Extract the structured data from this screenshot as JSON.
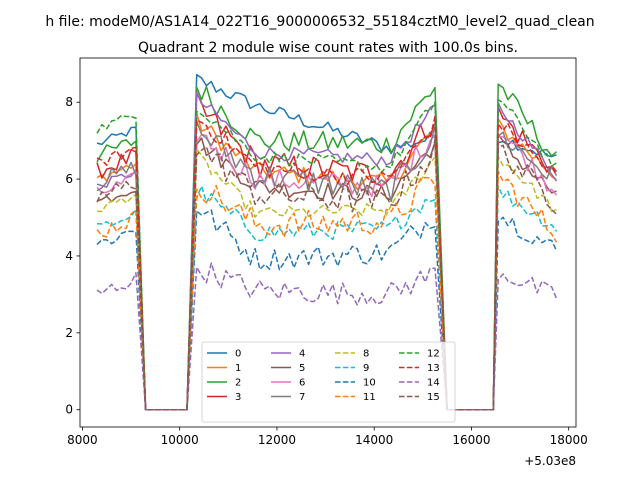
{
  "suptitle": "h file: modeM0/AS1A14_022T16_9000006532_55184cztM0_level2_quad_clean",
  "chart_data": {
    "type": "line",
    "title": "Quadrant 2 module wise count rates with 100.0s bins.",
    "xlabel": "",
    "ylabel": "",
    "offset_label": "+5.03e8",
    "xlim": [
      7950,
      18150
    ],
    "ylim": [
      -0.45,
      9.15
    ],
    "x_ticks": [
      8000,
      10000,
      12000,
      14000,
      16000,
      18000
    ],
    "x_tick_labels": [
      "8000",
      "10000",
      "12000",
      "14000",
      "16000",
      "18000"
    ],
    "y_ticks": [
      0,
      2,
      4,
      6,
      8
    ],
    "y_tick_labels": [
      "0",
      "2",
      "4",
      "6",
      "8"
    ],
    "grid": false,
    "legend": {
      "placement": "lower-center",
      "ncol": 4
    },
    "segments": [
      {
        "start": 8300,
        "end": 9100
      },
      {
        "start": 10350,
        "end": 15300
      },
      {
        "start": 16550,
        "end": 17800
      }
    ],
    "gaps": [
      {
        "start": 9300,
        "end": 10150
      },
      {
        "start": 15500,
        "end": 16450
      }
    ],
    "series": [
      {
        "name": "0",
        "color": "#1f77b4",
        "dash": "solid",
        "values": [
          6.9,
          8.6,
          7.9,
          6.8,
          7.1,
          6.5
        ]
      },
      {
        "name": "1",
        "color": "#ff7f0e",
        "dash": "solid",
        "values": [
          6.0,
          7.5,
          6.2,
          5.9,
          7.4,
          6.0
        ]
      },
      {
        "name": "2",
        "color": "#2ca02c",
        "dash": "solid",
        "values": [
          6.6,
          8.4,
          7.0,
          6.9,
          8.5,
          6.4
        ]
      },
      {
        "name": "3",
        "color": "#d62728",
        "dash": "solid",
        "values": [
          6.2,
          7.9,
          6.4,
          6.1,
          7.7,
          6.1
        ]
      },
      {
        "name": "4",
        "color": "#9467bd",
        "dash": "solid",
        "values": [
          5.8,
          8.1,
          6.7,
          6.5,
          7.9,
          6.0
        ]
      },
      {
        "name": "5",
        "color": "#8c564b",
        "dash": "solid",
        "values": [
          5.4,
          7.0,
          5.8,
          5.6,
          7.0,
          5.5
        ]
      },
      {
        "name": "6",
        "color": "#e377c2",
        "dash": "solid",
        "values": [
          5.6,
          7.2,
          6.0,
          5.8,
          7.3,
          5.6
        ]
      },
      {
        "name": "7",
        "color": "#7f7f7f",
        "dash": "solid",
        "values": [
          5.9,
          7.3,
          6.1,
          5.7,
          7.2,
          5.9
        ]
      },
      {
        "name": "8",
        "color": "#bcbd22",
        "dash": "dashed",
        "values": [
          5.2,
          6.6,
          5.1,
          5.2,
          6.6,
          5.1
        ]
      },
      {
        "name": "9",
        "color": "#17becf",
        "dash": "dashed",
        "values": [
          4.7,
          5.7,
          4.6,
          4.7,
          5.7,
          4.7
        ]
      },
      {
        "name": "10",
        "color": "#1f77b4",
        "dash": "dashed",
        "values": [
          4.3,
          5.3,
          3.9,
          4.1,
          5.1,
          4.1
        ]
      },
      {
        "name": "11",
        "color": "#ff7f0e",
        "dash": "dashed",
        "values": [
          4.6,
          5.9,
          4.8,
          4.9,
          6.1,
          4.5
        ]
      },
      {
        "name": "12",
        "color": "#2ca02c",
        "dash": "dashed",
        "values": [
          7.3,
          7.9,
          6.6,
          6.3,
          8.1,
          6.2
        ]
      },
      {
        "name": "13",
        "color": "#d62728",
        "dash": "dashed",
        "values": [
          6.4,
          7.6,
          6.3,
          6.0,
          7.5,
          6.0
        ]
      },
      {
        "name": "14",
        "color": "#9467bd",
        "dash": "dashed",
        "values": [
          3.0,
          3.7,
          3.1,
          3.0,
          3.6,
          2.9
        ]
      },
      {
        "name": "15",
        "color": "#8c564b",
        "dash": "dashed",
        "values": [
          5.5,
          6.9,
          5.6,
          5.4,
          6.8,
          5.3
        ]
      }
    ]
  }
}
